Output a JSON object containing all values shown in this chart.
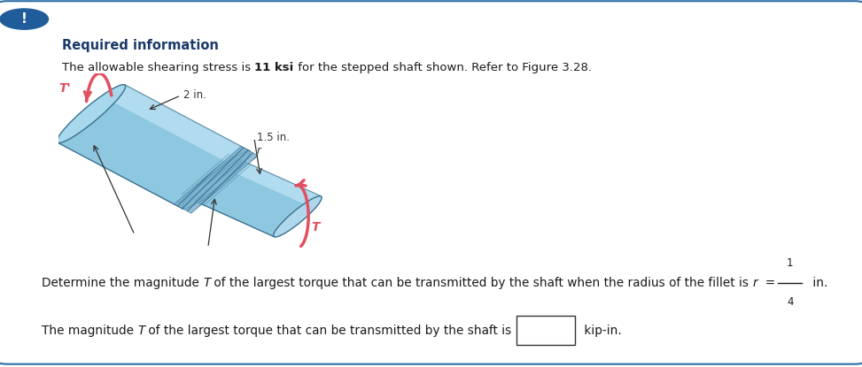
{
  "bg_color": "#ffffff",
  "border_color": "#2e6da4",
  "alert_bg": "#1f5c99",
  "alert_text": "!",
  "required_info_text": "Required information",
  "required_info_color": "#1a3a6b",
  "line1_pre": "The allowable shearing stress is ",
  "line1_bold": "11 ksi",
  "line1_post": " for the stepped shaft shown. Refer to Figure 3.28.",
  "figure_bg": "#e8e2f0",
  "question_line": "Determine the magnitude ​T​ of the largest torque that can be transmitted by the shaft when the radius of the fillet is ​r​  = ",
  "fraction_num": "1",
  "fraction_den": "4",
  "question_end": " in.",
  "answer_line_prefix": "The magnitude ​T​ of the largest torque that can be transmitted by the shaft is",
  "answer_line_suffix": " kip-in.",
  "text_color": "#1a1a1a",
  "shaft_light": "#b8dcea",
  "shaft_mid": "#8cc5dc",
  "shaft_dark": "#5a9ab8",
  "shaft_edge": "#3a7a98",
  "shaft_highlight": "#d8eef8",
  "torque_color": "#e05060",
  "label_color": "#1a1a1a"
}
